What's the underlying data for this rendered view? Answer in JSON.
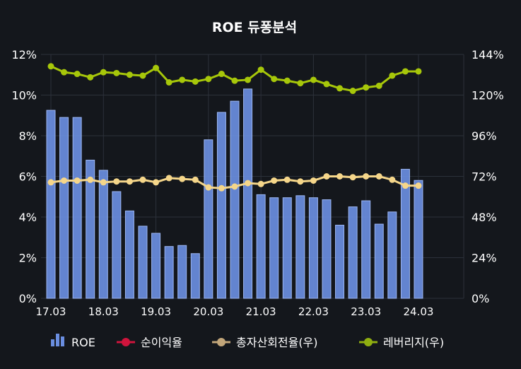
{
  "chart_data": {
    "type": "bar",
    "title": "ROE 듀퐁분석",
    "x_labels": [
      "17.03",
      "18.03",
      "19.03",
      "20.03",
      "21.03",
      "22.03",
      "23.03",
      "24.03"
    ],
    "y_left": {
      "min": 0,
      "max": 12,
      "ticks": [
        "0%",
        "2%",
        "4%",
        "6%",
        "8%",
        "10%",
        "12%"
      ]
    },
    "y_right": {
      "min": 0,
      "max": 144,
      "ticks": [
        "0%",
        "24%",
        "48%",
        "72%",
        "96%",
        "120%",
        "144%"
      ]
    },
    "grid": true,
    "legend_position": "bottom",
    "series": [
      {
        "name": "ROE",
        "type": "bar",
        "axis": "left",
        "color": "#6a8ee0",
        "values": [
          9.25,
          8.9,
          8.9,
          6.8,
          6.3,
          5.25,
          4.3,
          3.55,
          3.2,
          2.55,
          2.6,
          2.2,
          7.8,
          9.15,
          9.7,
          10.3,
          5.1,
          4.95,
          4.95,
          5.05,
          4.95,
          4.85,
          3.6,
          4.5,
          4.8,
          3.65,
          4.25,
          6.35,
          5.8
        ]
      },
      {
        "name": "순이익율",
        "type": "line",
        "axis": "right",
        "color": "#d0143c",
        "values": []
      },
      {
        "name": "총자산회전율(우)",
        "type": "line",
        "axis": "right",
        "color": "#f5d68a",
        "values": [
          68.5,
          69.5,
          69.5,
          70,
          68.5,
          69,
          69,
          70,
          68.5,
          71,
          70.5,
          70,
          65.5,
          65,
          66,
          68,
          67.5,
          69.5,
          70,
          69,
          69.5,
          72,
          72,
          71.5,
          72,
          72,
          70,
          66.5,
          66.5
        ]
      },
      {
        "name": "레버리지(우)",
        "type": "line",
        "axis": "right",
        "color": "#a7c70a",
        "values": [
          137,
          133.5,
          132.5,
          130.5,
          133.5,
          133,
          132,
          131.5,
          136,
          127.5,
          129,
          128,
          129.5,
          132.5,
          128.5,
          129,
          135,
          129.5,
          128.5,
          127,
          129,
          126.5,
          124,
          122.5,
          124.5,
          125.5,
          131.5,
          134,
          134
        ]
      }
    ],
    "legend": [
      {
        "label": "ROE",
        "icon": "bar-chart-icon",
        "color": "#6a8ee0"
      },
      {
        "label": "순이익율",
        "icon": "line-dot-icon",
        "color": "#d0143c"
      },
      {
        "label": "총자산회전율(우)",
        "icon": "line-dot-icon",
        "color": "#c2a67a"
      },
      {
        "label": "레버리지(우)",
        "icon": "line-dot-icon",
        "color": "#8fae10"
      }
    ],
    "colors": {
      "background": "#14171c",
      "grid": "#2c313a",
      "text": "#ffffff"
    }
  }
}
